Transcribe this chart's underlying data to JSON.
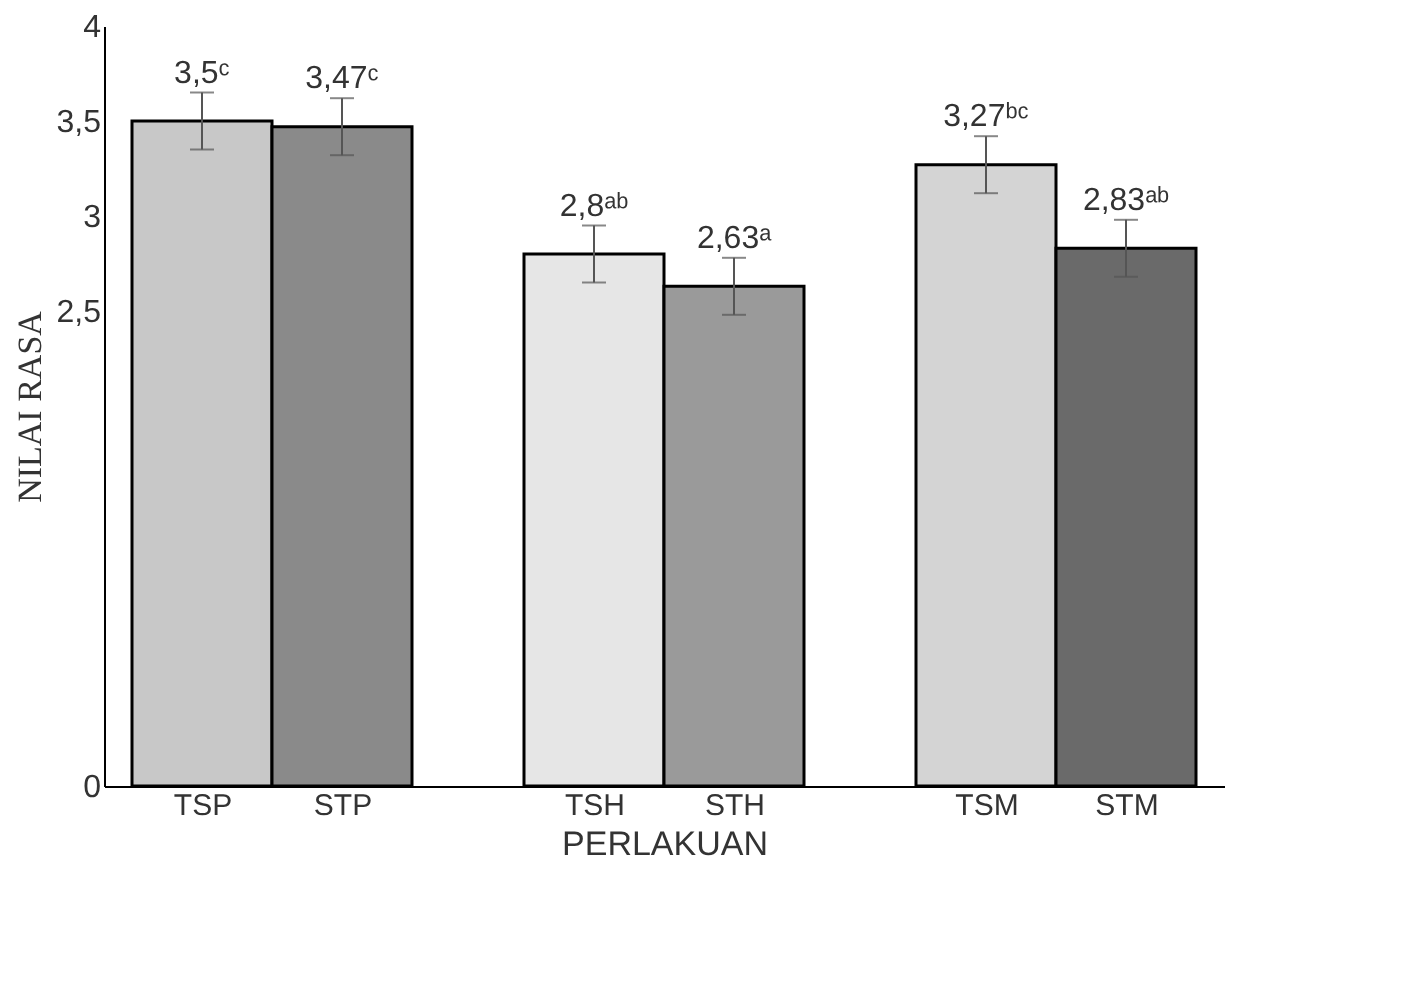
{
  "chart_data": {
    "type": "bar",
    "xlabel": "PERLAKUAN",
    "ylabel": "NILAI RASA",
    "categories": [
      "TSP",
      "STP",
      "TSH",
      "STH",
      "TSM",
      "STM"
    ],
    "values": [
      3.5,
      3.47,
      2.8,
      2.63,
      3.27,
      2.83
    ],
    "colors": [
      "#c8c8c8",
      "#8a8a8a",
      "#e6e6e6",
      "#9a9a9a",
      "#d4d4d4",
      "#6a6a6a"
    ],
    "errors": [
      0.15,
      0.15,
      0.15,
      0.15,
      0.15,
      0.15
    ],
    "value_labels": [
      "3,5ᶜ",
      "3,47ᶜ",
      "2,8ᵃᵇ",
      "2,63ᵃ",
      "3,27ᵇᶜ",
      "2,83ᵃᵇ"
    ],
    "ylim": [
      0,
      4
    ],
    "yticks": [
      {
        "value": 0,
        "label": "0"
      },
      {
        "value": 2.5,
        "label": "2,5"
      },
      {
        "value": 3,
        "label": "3"
      },
      {
        "value": 3.5,
        "label": "3,5"
      },
      {
        "value": 4,
        "label": "4"
      }
    ],
    "grid": false
  }
}
